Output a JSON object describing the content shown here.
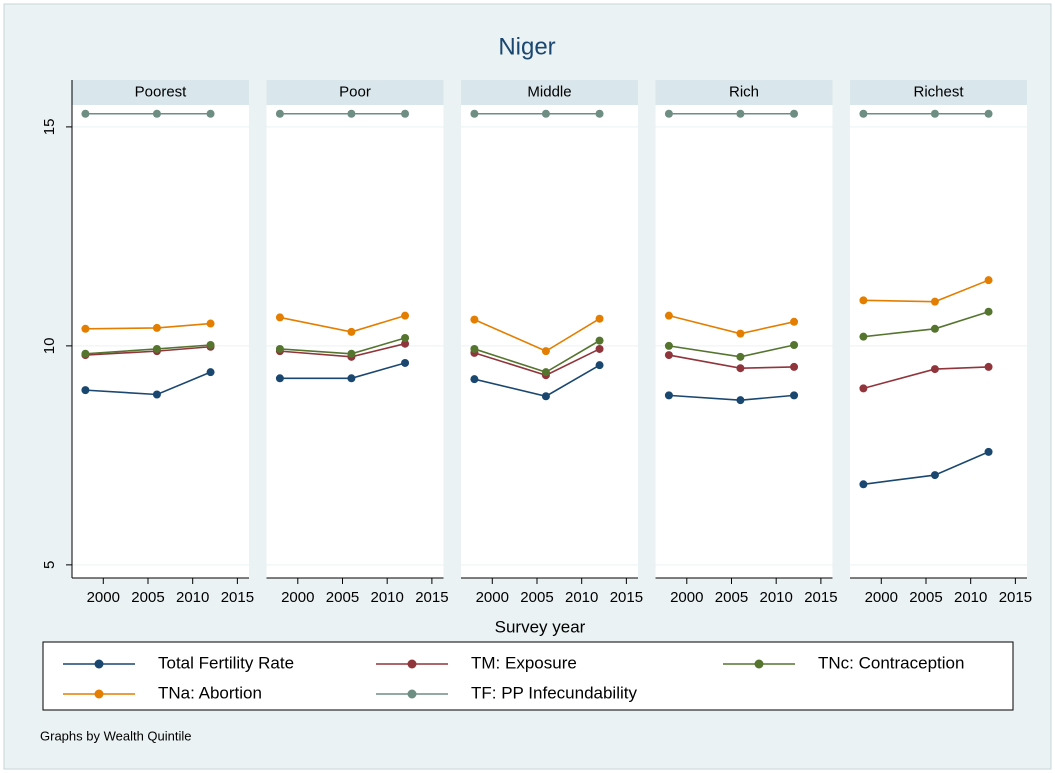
{
  "chart_data": {
    "type": "line",
    "title": "Niger",
    "x_label": "Survey year",
    "note": "Graphs by Wealth Quintile",
    "panels": [
      "Poorest",
      "Poor",
      "Middle",
      "Rich",
      "Richest"
    ],
    "x": [
      1998,
      2006,
      2012
    ],
    "xlim": [
      1996.5,
      2016.3
    ],
    "xticks": [
      2000,
      2005,
      2010,
      2015
    ],
    "ylim": [
      4.7,
      15.5
    ],
    "yticks": [
      5,
      10,
      15
    ],
    "grid": true,
    "series": [
      {
        "name": "Total Fertility Rate",
        "color": "#1a476f",
        "values": [
          [
            8.99,
            8.89,
            9.4
          ],
          [
            9.26,
            9.26,
            9.61
          ],
          [
            9.24,
            8.85,
            9.56
          ],
          [
            8.87,
            8.76,
            8.87
          ],
          [
            6.84,
            7.05,
            7.58
          ]
        ]
      },
      {
        "name": "TM: Exposure",
        "color": "#90353b",
        "values": [
          [
            9.79,
            9.88,
            9.98
          ],
          [
            9.88,
            9.75,
            10.05
          ],
          [
            9.84,
            9.33,
            9.93
          ],
          [
            9.79,
            9.49,
            9.52
          ],
          [
            9.03,
            9.47,
            9.52
          ]
        ]
      },
      {
        "name": "TNc: Contraception",
        "color": "#55752f",
        "values": [
          [
            9.82,
            9.93,
            10.02
          ],
          [
            9.93,
            9.82,
            10.18
          ],
          [
            9.93,
            9.4,
            10.12
          ],
          [
            10.0,
            9.75,
            10.02
          ],
          [
            10.21,
            10.39,
            10.78
          ]
        ]
      },
      {
        "name": "TNa: Abortion",
        "color": "#e37e00",
        "values": [
          [
            10.39,
            10.41,
            10.51
          ],
          [
            10.65,
            10.32,
            10.69
          ],
          [
            10.6,
            9.88,
            10.62
          ],
          [
            10.69,
            10.28,
            10.55
          ],
          [
            11.04,
            11.01,
            11.5
          ]
        ]
      },
      {
        "name": "TF: PP Infecundability",
        "color": "#6e8e84",
        "values": [
          [
            15.3,
            15.3,
            15.3
          ],
          [
            15.3,
            15.3,
            15.3
          ],
          [
            15.3,
            15.3,
            15.3
          ],
          [
            15.3,
            15.3,
            15.3
          ],
          [
            15.3,
            15.3,
            15.3
          ]
        ]
      }
    ]
  }
}
